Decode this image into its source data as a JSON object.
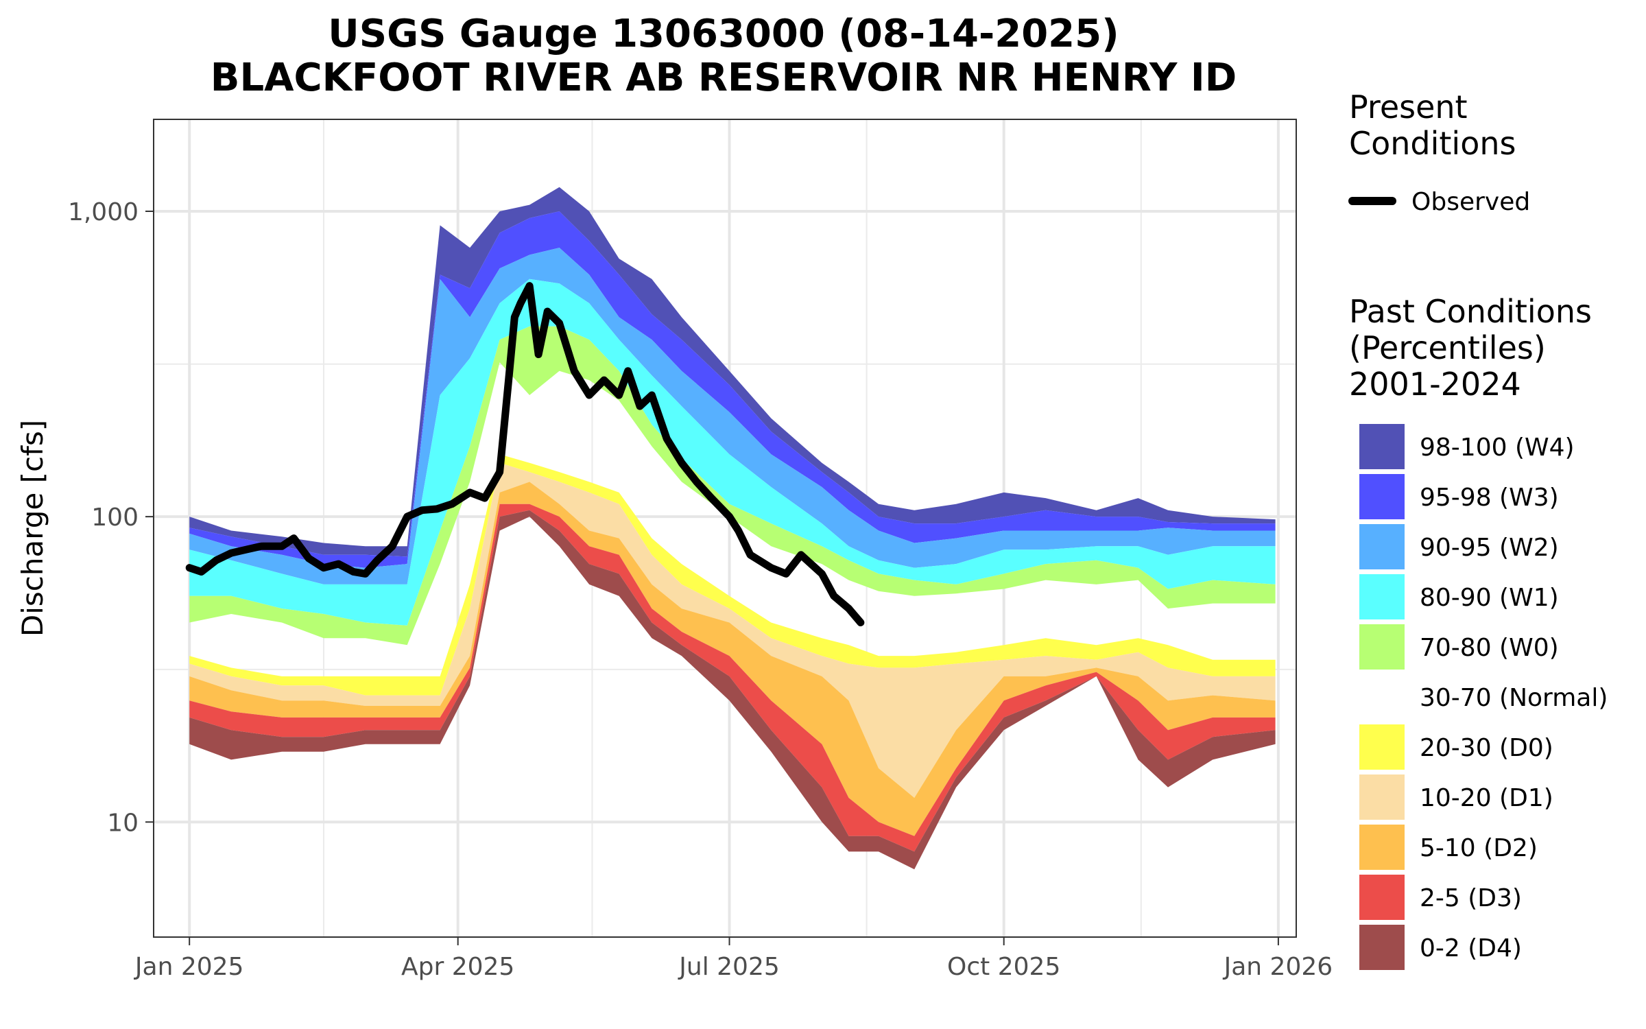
{
  "chart_data": {
    "type": "area",
    "title": "USGS Gauge 13063000 (08-14-2025)",
    "subtitle": "BLACKFOOT RIVER AB RESERVOIR NR HENRY ID",
    "ylabel": "Discharge [cfs]",
    "xlabel": "",
    "y_scale": "log",
    "ylim": [
      4.2,
      2000
    ],
    "xlim": [
      "2024-12-20",
      "2026-01-07"
    ],
    "grid": true,
    "legend_position": "right",
    "x_ticks": [
      {
        "date": "2025-01-01",
        "label": "Jan 2025"
      },
      {
        "date": "2025-04-01",
        "label": "Apr 2025"
      },
      {
        "date": "2025-07-01",
        "label": "Jul 2025"
      },
      {
        "date": "2025-10-01",
        "label": "Oct 2025"
      },
      {
        "date": "2026-01-01",
        "label": "Jan 2026"
      }
    ],
    "x_minor_ticks": [
      "2025-02-15",
      "2025-05-16",
      "2025-08-16",
      "2025-11-16"
    ],
    "y_ticks": [
      {
        "value": 10,
        "label": "10"
      },
      {
        "value": 100,
        "label": "100"
      },
      {
        "value": 1000,
        "label": "1,000"
      }
    ],
    "y_minor_ticks": [
      31.6,
      316
    ],
    "legend_present": {
      "title": [
        "Present",
        "Conditions"
      ],
      "items": [
        {
          "label": "Observed",
          "color": "#000000"
        }
      ]
    },
    "legend_past": {
      "title": [
        "Past Conditions",
        "(Percentiles)",
        "2001-2024"
      ],
      "items": [
        {
          "label": "98-100 (W4)",
          "color": "#5151b5"
        },
        {
          "label": "95-98 (W3)",
          "color": "#5050ff"
        },
        {
          "label": "90-95 (W2)",
          "color": "#57b0ff"
        },
        {
          "label": "80-90 (W1)",
          "color": "#5affff"
        },
        {
          "label": "70-80 (W0)",
          "color": "#b7ff73"
        },
        {
          "label": "30-70 (Normal)",
          "color": "#ffffff"
        },
        {
          "label": "20-30 (D0)",
          "color": "#ffff4d"
        },
        {
          "label": "10-20 (D1)",
          "color": "#fbdda5"
        },
        {
          "label": "5-10 (D2)",
          "color": "#fec04f"
        },
        {
          "label": "2-5 (D3)",
          "color": "#ec4d4a"
        },
        {
          "label": "0-2 (D4)",
          "color": "#9e4c4c"
        }
      ]
    },
    "percentile_bands": {
      "dates": [
        "2025-01-01",
        "2025-01-15",
        "2025-02-01",
        "2025-02-15",
        "2025-03-01",
        "2025-03-15",
        "2025-03-26",
        "2025-04-05",
        "2025-04-15",
        "2025-04-25",
        "2025-05-05",
        "2025-05-15",
        "2025-05-25",
        "2025-06-05",
        "2025-06-15",
        "2025-07-01",
        "2025-07-15",
        "2025-08-01",
        "2025-08-10",
        "2025-08-20",
        "2025-09-01",
        "2025-09-15",
        "2025-10-01",
        "2025-10-15",
        "2025-11-01",
        "2025-11-15",
        "2025-11-25",
        "2025-12-10",
        "2025-12-31"
      ],
      "boundaries": [
        {
          "name": "max",
          "values": [
            100,
            90,
            86,
            82,
            80,
            80,
            900,
            760,
            1000,
            1050,
            1200,
            1000,
            700,
            600,
            450,
            300,
            210,
            150,
            130,
            110,
            105,
            110,
            120,
            115,
            105,
            115,
            105,
            100,
            98
          ]
        },
        {
          "name": "p98",
          "values": [
            92,
            86,
            80,
            75,
            75,
            74,
            620,
            560,
            850,
            950,
            1000,
            800,
            620,
            460,
            380,
            270,
            190,
            140,
            120,
            100,
            95,
            95,
            100,
            105,
            100,
            100,
            96,
            95,
            95
          ]
        },
        {
          "name": "p95",
          "values": [
            88,
            80,
            75,
            70,
            68,
            70,
            600,
            450,
            650,
            720,
            760,
            620,
            450,
            380,
            300,
            220,
            160,
            125,
            105,
            90,
            82,
            85,
            90,
            90,
            90,
            90,
            92,
            90,
            90
          ]
        },
        {
          "name": "p90",
          "values": [
            78,
            72,
            65,
            60,
            60,
            60,
            250,
            330,
            500,
            600,
            580,
            500,
            380,
            290,
            230,
            160,
            125,
            95,
            80,
            72,
            68,
            70,
            78,
            78,
            80,
            80,
            75,
            80,
            80
          ]
        },
        {
          "name": "p80",
          "values": [
            55,
            55,
            50,
            48,
            45,
            44,
            90,
            170,
            380,
            420,
            420,
            380,
            300,
            200,
            155,
            110,
            95,
            80,
            72,
            65,
            62,
            60,
            65,
            70,
            72,
            68,
            58,
            62,
            60
          ]
        },
        {
          "name": "p70",
          "values": [
            45,
            48,
            45,
            40,
            40,
            38,
            70,
            130,
            320,
            250,
            300,
            280,
            240,
            170,
            130,
            100,
            80,
            70,
            62,
            57,
            55,
            56,
            58,
            62,
            60,
            62,
            50,
            52,
            52
          ]
        },
        {
          "name": "p30",
          "values": [
            35,
            32,
            30,
            30,
            30,
            30,
            30,
            60,
            160,
            150,
            140,
            130,
            120,
            85,
            70,
            55,
            45,
            40,
            38,
            35,
            35,
            36,
            38,
            40,
            38,
            40,
            38,
            34,
            34
          ]
        },
        {
          "name": "p20",
          "values": [
            33,
            30,
            28,
            28,
            26,
            26,
            26,
            50,
            150,
            140,
            130,
            120,
            110,
            75,
            60,
            50,
            40,
            35,
            33,
            32,
            32,
            33,
            34,
            35,
            34,
            36,
            32,
            30,
            30
          ]
        },
        {
          "name": "p10",
          "values": [
            30,
            27,
            25,
            25,
            24,
            24,
            24,
            35,
            120,
            130,
            110,
            90,
            85,
            60,
            50,
            45,
            35,
            30,
            25,
            15,
            12,
            20,
            30,
            30,
            32,
            30,
            25,
            26,
            25
          ]
        },
        {
          "name": "p5",
          "values": [
            25,
            23,
            22,
            22,
            22,
            22,
            22,
            32,
            110,
            110,
            100,
            80,
            75,
            50,
            42,
            35,
            25,
            18,
            12,
            10,
            9,
            15,
            25,
            28,
            31,
            25,
            20,
            22,
            22
          ]
        },
        {
          "name": "p2",
          "values": [
            22,
            20,
            19,
            19,
            20,
            20,
            20,
            30,
            100,
            105,
            90,
            70,
            65,
            45,
            38,
            30,
            20,
            13,
            9,
            9,
            8,
            14,
            22,
            25,
            30,
            20,
            16,
            19,
            20
          ]
        },
        {
          "name": "min",
          "values": [
            18,
            16,
            17,
            17,
            18,
            18,
            18,
            28,
            90,
            100,
            80,
            60,
            55,
            40,
            35,
            25,
            17,
            10,
            8,
            8,
            7,
            13,
            20,
            24,
            30,
            16,
            13,
            16,
            18
          ]
        }
      ]
    },
    "observed": {
      "name": "Observed",
      "dates": [
        "2025-01-01",
        "2025-01-05",
        "2025-01-10",
        "2025-01-15",
        "2025-01-20",
        "2025-01-25",
        "2025-02-01",
        "2025-02-05",
        "2025-02-10",
        "2025-02-15",
        "2025-02-20",
        "2025-02-25",
        "2025-03-01",
        "2025-03-05",
        "2025-03-10",
        "2025-03-15",
        "2025-03-20",
        "2025-03-25",
        "2025-03-30",
        "2025-04-05",
        "2025-04-10",
        "2025-04-15",
        "2025-04-18",
        "2025-04-20",
        "2025-04-22",
        "2025-04-25",
        "2025-04-28",
        "2025-05-01",
        "2025-05-05",
        "2025-05-10",
        "2025-05-15",
        "2025-05-20",
        "2025-05-25",
        "2025-05-28",
        "2025-06-01",
        "2025-06-05",
        "2025-06-10",
        "2025-06-15",
        "2025-06-20",
        "2025-06-25",
        "2025-07-01",
        "2025-07-04",
        "2025-07-08",
        "2025-07-15",
        "2025-07-20",
        "2025-07-25",
        "2025-08-01",
        "2025-08-05",
        "2025-08-10",
        "2025-08-14"
      ],
      "values": [
        68,
        66,
        72,
        76,
        78,
        80,
        80,
        85,
        73,
        68,
        70,
        66,
        65,
        72,
        80,
        100,
        105,
        106,
        110,
        120,
        115,
        140,
        280,
        450,
        500,
        570,
        340,
        470,
        430,
        300,
        250,
        280,
        250,
        300,
        230,
        250,
        180,
        150,
        130,
        115,
        100,
        90,
        75,
        68,
        65,
        75,
        65,
        55,
        50,
        45
      ]
    }
  }
}
